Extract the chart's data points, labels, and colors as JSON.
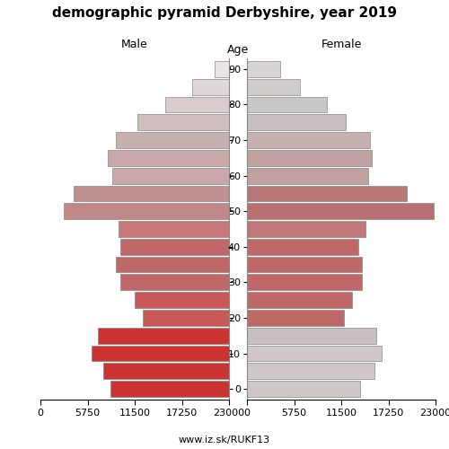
{
  "title": "demographic pyramid Derbyshire, year 2019",
  "ages": [
    0,
    5,
    10,
    15,
    20,
    25,
    30,
    35,
    40,
    45,
    50,
    55,
    60,
    65,
    70,
    75,
    80,
    85,
    90
  ],
  "male_vals": [
    14500,
    15300,
    16800,
    16000,
    10500,
    11500,
    13200,
    13800,
    13200,
    13500,
    20200,
    19000,
    14200,
    14800,
    13800,
    11200,
    7800,
    4500,
    1800
  ],
  "female_vals": [
    13800,
    15500,
    16400,
    15800,
    11800,
    12800,
    14000,
    14000,
    13600,
    14500,
    22800,
    19500,
    14800,
    15200,
    15000,
    12000,
    9800,
    6500,
    4000
  ],
  "male_colors": [
    "#cc3333",
    "#cc3333",
    "#cc3333",
    "#cc3333",
    "#c85858",
    "#c85858",
    "#c06868",
    "#c06868",
    "#c06868",
    "#c87878",
    "#c08888",
    "#c09090",
    "#c8a8a8",
    "#c8a8a8",
    "#c8b0b0",
    "#d0bebe",
    "#d8cccc",
    "#e0d8d8",
    "#eae6e6"
  ],
  "female_colors": [
    "#d0c8c8",
    "#d0c8c8",
    "#d0c8c8",
    "#c8c0c0",
    "#c06868",
    "#c06868",
    "#c06868",
    "#c06868",
    "#c06868",
    "#c07878",
    "#b87070",
    "#b87878",
    "#c0a0a0",
    "#c0a0a0",
    "#c8b0b0",
    "#c8c0c0",
    "#c8c8c8",
    "#d0cccc",
    "#d8d4d4"
  ],
  "tick_values": [
    0,
    5750,
    11500,
    17250,
    23000
  ],
  "tick_labels": [
    "0",
    "5750",
    "11500",
    "17250",
    "23000"
  ],
  "male_tick_labels": [
    "23000",
    "17250",
    "11500",
    "5750",
    "0"
  ],
  "age_tick_labels": [
    "0",
    "10",
    "20",
    "30",
    "40",
    "50",
    "60",
    "70",
    "80",
    "90"
  ],
  "age_ticks": [
    0,
    10,
    20,
    30,
    40,
    50,
    60,
    70,
    80,
    90
  ],
  "xlim": 23000,
  "ylim_min": -3,
  "ylim_max": 93,
  "bar_height": 4.5,
  "edgecolor": "#888888",
  "linewidth": 0.5,
  "header_male": "Male",
  "header_female": "Female",
  "header_age": "Age",
  "footer": "www.iz.sk/RUKF13",
  "title_fontsize": 11,
  "header_fontsize": 9,
  "tick_fontsize": 8,
  "age_label_fontsize": 8
}
